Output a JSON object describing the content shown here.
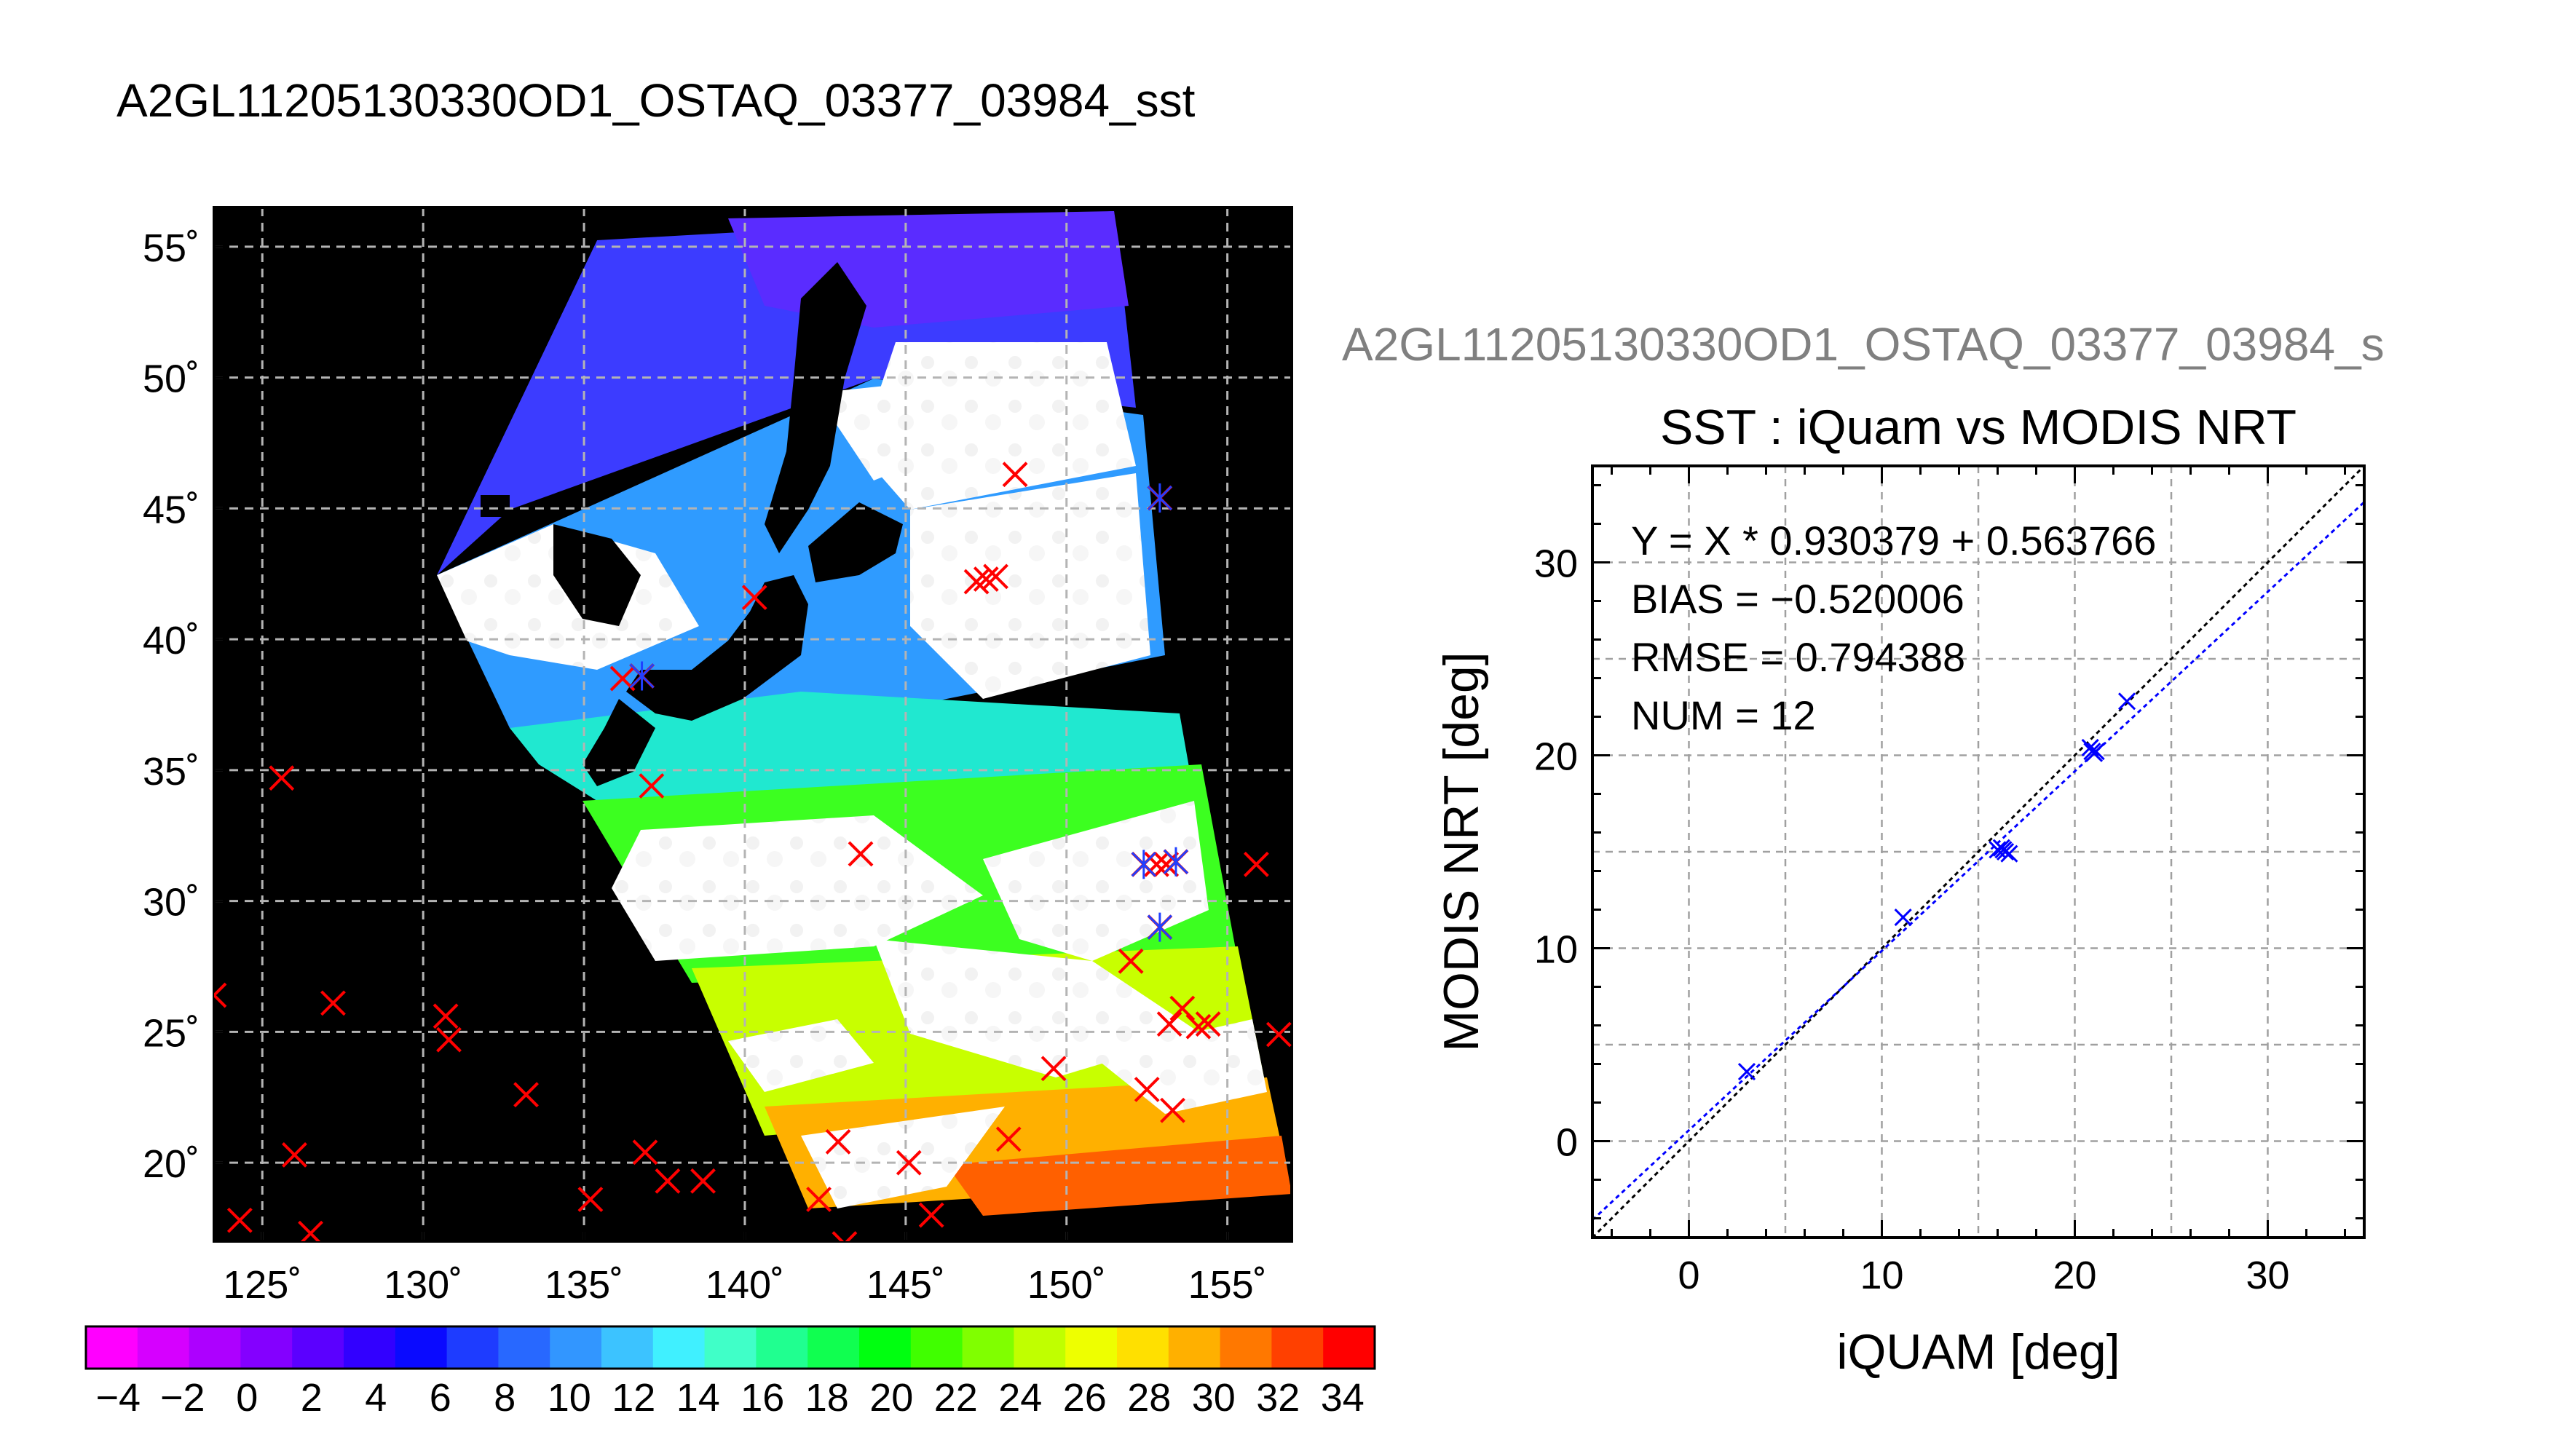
{
  "figure": {
    "main_title": "A2GL11205130330OD1_OSTAQ_03377_03984_sst",
    "side_title": "A2GL11205130330OD1_OSTAQ_03377_03984_s"
  },
  "chart_data": [
    {
      "type": "heatmap",
      "subtype": "map",
      "title": "A2GL11205130330OD1_OSTAQ_03377_03984_sst",
      "xlabel": "",
      "ylabel": "",
      "xlim": [
        123.5,
        157.0
      ],
      "ylim": [
        17.0,
        56.5
      ],
      "x_ticks": [
        125,
        130,
        135,
        140,
        145,
        150,
        155
      ],
      "x_tick_labels": [
        "125˚",
        "130˚",
        "135˚",
        "140˚",
        "145˚",
        "150˚",
        "155˚"
      ],
      "y_ticks": [
        20,
        25,
        30,
        35,
        40,
        45,
        50,
        55
      ],
      "y_tick_labels": [
        "20˚",
        "25˚",
        "30˚",
        "35˚",
        "40˚",
        "45˚",
        "50˚",
        "55˚"
      ],
      "grid": true,
      "colorbar": {
        "range": [
          -5,
          35
        ],
        "ticks": [
          -4,
          -2,
          0,
          2,
          4,
          6,
          8,
          10,
          12,
          14,
          16,
          18,
          20,
          22,
          24,
          26,
          28,
          30,
          32,
          34
        ],
        "tick_labels": [
          "−4",
          "−2",
          "0",
          "2",
          "4",
          "6",
          "8",
          "10",
          "12",
          "14",
          "16",
          "18",
          "20",
          "22",
          "24",
          "26",
          "28",
          "30",
          "32",
          "34"
        ],
        "colors": [
          "#ff00ff",
          "#d600ff",
          "#ad00ff",
          "#8400ff",
          "#5b00ff",
          "#3200ff",
          "#0a0aff",
          "#1e3cff",
          "#2868ff",
          "#3296ff",
          "#3cc3ff",
          "#40f0ff",
          "#40ffc8",
          "#20ff90",
          "#10ff50",
          "#00ff10",
          "#40ff00",
          "#80ff00",
          "#c0ff00",
          "#eeff00",
          "#ffe000",
          "#ffb000",
          "#ff7800",
          "#ff4000",
          "#ff0000"
        ]
      },
      "matchups_red_x": [
        [
          123.5,
          26.4
        ],
        [
          125.6,
          34.7
        ],
        [
          127.2,
          26.1
        ],
        [
          130.7,
          25.6
        ],
        [
          130.8,
          24.7
        ],
        [
          133.2,
          22.6
        ],
        [
          126.0,
          20.3
        ],
        [
          124.3,
          17.8
        ],
        [
          126.5,
          17.3
        ],
        [
          135.2,
          18.6
        ],
        [
          136.9,
          20.4
        ],
        [
          137.6,
          19.3
        ],
        [
          138.7,
          19.3
        ],
        [
          136.2,
          38.5
        ],
        [
          136.8,
          38.6
        ],
        [
          137.1,
          34.4
        ],
        [
          140.3,
          41.6
        ],
        [
          143.6,
          31.8
        ],
        [
          147.2,
          42.2
        ],
        [
          147.5,
          42.3
        ],
        [
          147.8,
          42.4
        ],
        [
          148.4,
          46.3
        ],
        [
          152.9,
          45.4
        ],
        [
          152.4,
          31.4
        ],
        [
          152.8,
          31.4
        ],
        [
          153.1,
          31.4
        ],
        [
          153.4,
          31.5
        ],
        [
          152.9,
          29.0
        ],
        [
          152.0,
          27.7
        ],
        [
          153.6,
          25.9
        ],
        [
          153.2,
          25.3
        ],
        [
          154.1,
          25.2
        ],
        [
          154.4,
          25.3
        ],
        [
          155.9,
          31.4
        ],
        [
          156.6,
          24.9
        ],
        [
          149.6,
          23.6
        ],
        [
          152.5,
          22.8
        ],
        [
          153.3,
          22.0
        ],
        [
          148.2,
          20.9
        ],
        [
          142.9,
          20.8
        ],
        [
          145.1,
          20.0
        ],
        [
          142.3,
          18.6
        ],
        [
          143.1,
          16.9
        ],
        [
          145.8,
          18.0
        ]
      ],
      "matchups_blue_star": [
        [
          136.8,
          38.6
        ],
        [
          152.4,
          31.4
        ],
        [
          153.4,
          31.5
        ],
        [
          152.9,
          29.0
        ],
        [
          152.9,
          45.4
        ]
      ]
    },
    {
      "type": "scatter",
      "title": "SST : iQuam vs MODIS NRT",
      "xlabel": "iQUAM [deg]",
      "ylabel": "MODIS NRT [deg]",
      "xlim": [
        -5,
        35
      ],
      "ylim": [
        -5,
        35
      ],
      "x_ticks": [
        0,
        10,
        20,
        30
      ],
      "y_ticks": [
        0,
        10,
        20,
        30
      ],
      "grid": true,
      "stats": [
        "Y = X * 0.930379 + 0.563766",
        "BIAS = −0.520006",
        "RMSE = 0.794388",
        "NUM = 12"
      ],
      "regression": {
        "slope": 0.930379,
        "intercept": 0.563766
      },
      "points": [
        [
          3.0,
          3.6
        ],
        [
          11.1,
          11.6
        ],
        [
          16.0,
          15.1
        ],
        [
          16.2,
          15.2
        ],
        [
          16.4,
          15.0
        ],
        [
          16.6,
          14.9
        ],
        [
          20.8,
          20.4
        ],
        [
          21.0,
          20.1
        ],
        [
          21.1,
          20.2
        ],
        [
          22.7,
          22.8
        ],
        [
          16.3,
          15.1
        ],
        [
          20.9,
          20.2
        ]
      ],
      "colors": {
        "points": "#0000ff",
        "identity": "#000000",
        "fit": "#0000ff"
      }
    }
  ]
}
